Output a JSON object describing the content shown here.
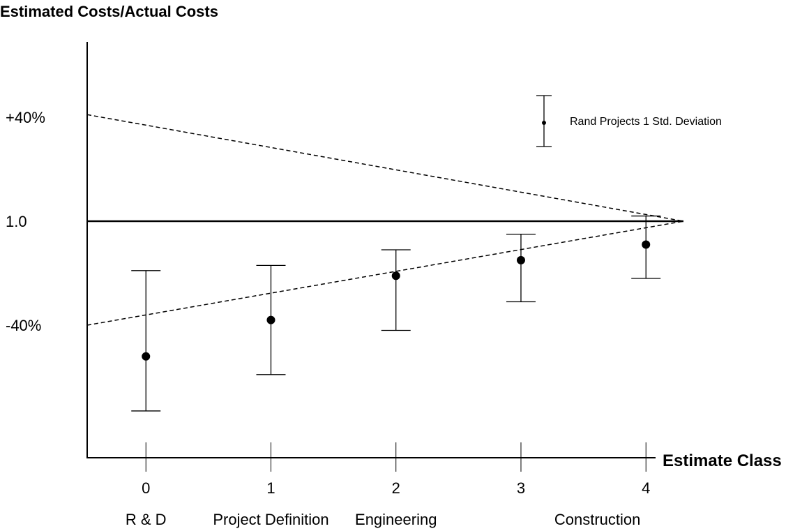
{
  "chart_data": {
    "type": "scatter",
    "title": "Estimated Costs/Actual Costs",
    "xlabel": "Estimate Class",
    "ylabel": "",
    "x_ticks": [
      0,
      1,
      2,
      3,
      4
    ],
    "x_categories": [
      "R & D",
      "Project Definition",
      "Engineering",
      "Construction"
    ],
    "y_ticks": [
      {
        "value": 40,
        "label": "+40%"
      },
      {
        "value": 0,
        "label": "1.0"
      },
      {
        "value": -40,
        "label": "-40%"
      }
    ],
    "xlim": [
      -0.47,
      4.3
    ],
    "ylim": [
      -91,
      69
    ],
    "reference_line": {
      "y": 0,
      "style": "solid"
    },
    "envelope": {
      "style": "dashed",
      "upper": [
        [
          -0.47,
          41
        ],
        [
          4.3,
          0
        ]
      ],
      "lower": [
        [
          -0.47,
          -40
        ],
        [
          4.3,
          0
        ]
      ]
    },
    "series": [
      {
        "name": "Rand Projects 1 Std. Deviation",
        "x": [
          0,
          1,
          2,
          3,
          4
        ],
        "y": [
          -52,
          -38,
          -21,
          -15,
          -9
        ],
        "err_low": [
          -73,
          -59,
          -42,
          -31,
          -22
        ],
        "err_high": [
          -19,
          -17,
          -11,
          -5,
          2
        ]
      }
    ],
    "legend_position": "top-right",
    "grid": false
  }
}
